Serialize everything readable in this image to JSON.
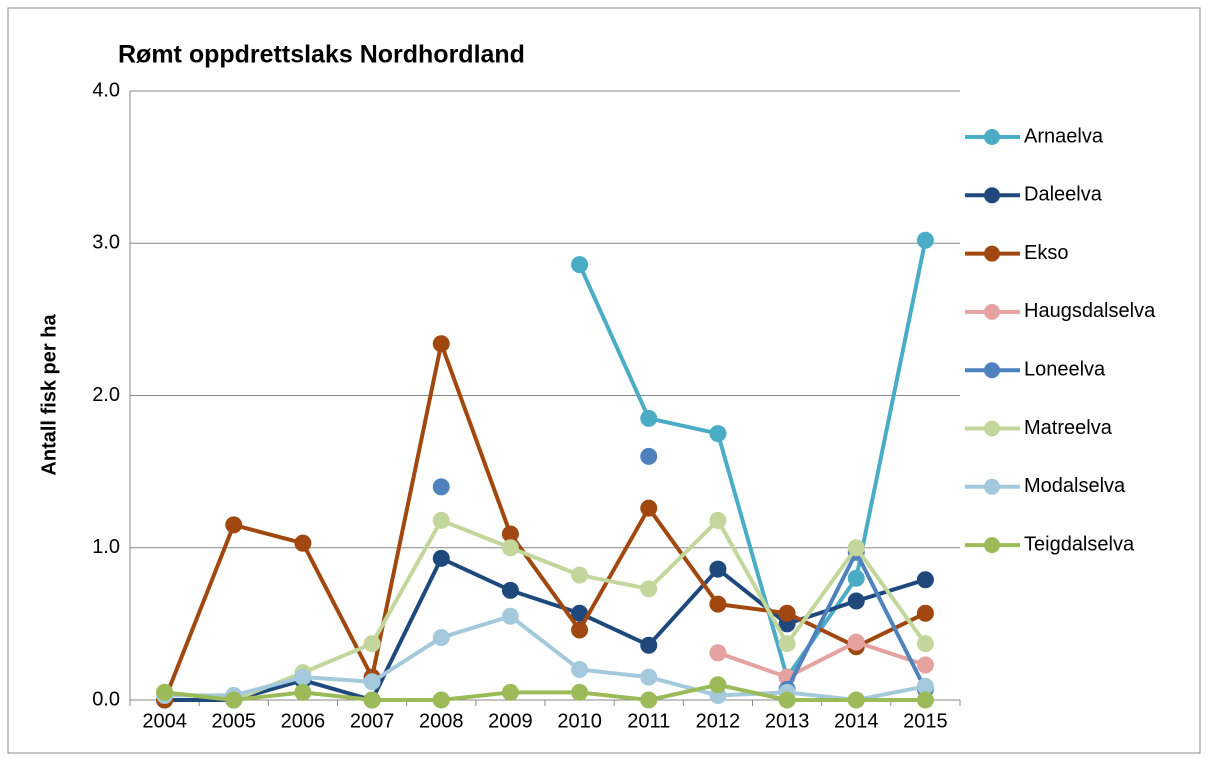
{
  "chart_data": {
    "type": "line",
    "title": "Rømt oppdrettslaks Nordhordland",
    "y_label": "Antall fisk per ha",
    "categories": [
      "2004",
      "2005",
      "2006",
      "2007",
      "2008",
      "2009",
      "2010",
      "2011",
      "2012",
      "2013",
      "2014",
      "2015"
    ],
    "ylim": [
      0,
      4
    ],
    "yticks": [
      {
        "value": 0,
        "label": "0.0"
      },
      {
        "value": 1,
        "label": "1.0"
      },
      {
        "value": 2,
        "label": "2.0"
      },
      {
        "value": 3,
        "label": "3.0"
      },
      {
        "value": 4,
        "label": "4.0"
      }
    ],
    "grid": true,
    "legend": "right",
    "series": [
      {
        "name": "Arnaelva",
        "color": "#4bacc6",
        "values": [
          null,
          null,
          null,
          null,
          null,
          null,
          2.86,
          1.85,
          1.75,
          0.15,
          0.8,
          3.02
        ]
      },
      {
        "name": "Daleelva",
        "color": "#1f497d",
        "values": [
          0,
          0,
          0.13,
          0,
          0.93,
          0.72,
          0.57,
          0.36,
          0.86,
          0.5,
          0.65,
          0.79
        ]
      },
      {
        "name": "Ekso",
        "color": "#a0480f",
        "values": [
          0,
          1.15,
          1.03,
          0.15,
          2.34,
          1.09,
          0.46,
          1.26,
          0.63,
          0.57,
          0.35,
          0.57
        ]
      },
      {
        "name": "Haugsdalselva",
        "color": "#e6a1a1",
        "values": [
          null,
          null,
          null,
          null,
          null,
          null,
          null,
          null,
          0.31,
          0.15,
          0.38,
          0.23
        ]
      },
      {
        "name": "Loneelva",
        "color": "#4f81bd",
        "values": [
          null,
          null,
          null,
          null,
          1.4,
          null,
          null,
          1.6,
          null,
          0.07,
          0.97,
          0.07
        ]
      },
      {
        "name": "Matreelva",
        "color": "#c3d69b",
        "values": [
          0.05,
          0,
          0.18,
          0.37,
          1.18,
          1.0,
          0.82,
          0.73,
          1.18,
          0.37,
          1.0,
          0.37
        ]
      },
      {
        "name": "Modalselva",
        "color": "#a5c9dc",
        "values": [
          0.03,
          0.03,
          0.15,
          0.12,
          0.41,
          0.55,
          0.2,
          0.15,
          0.03,
          0.05,
          0,
          0.09
        ]
      },
      {
        "name": "Teigdalselva",
        "color": "#9bbb59",
        "values": [
          0.05,
          0,
          0.05,
          0,
          0,
          0.05,
          0.05,
          0,
          0.1,
          0,
          0,
          0
        ]
      }
    ]
  }
}
